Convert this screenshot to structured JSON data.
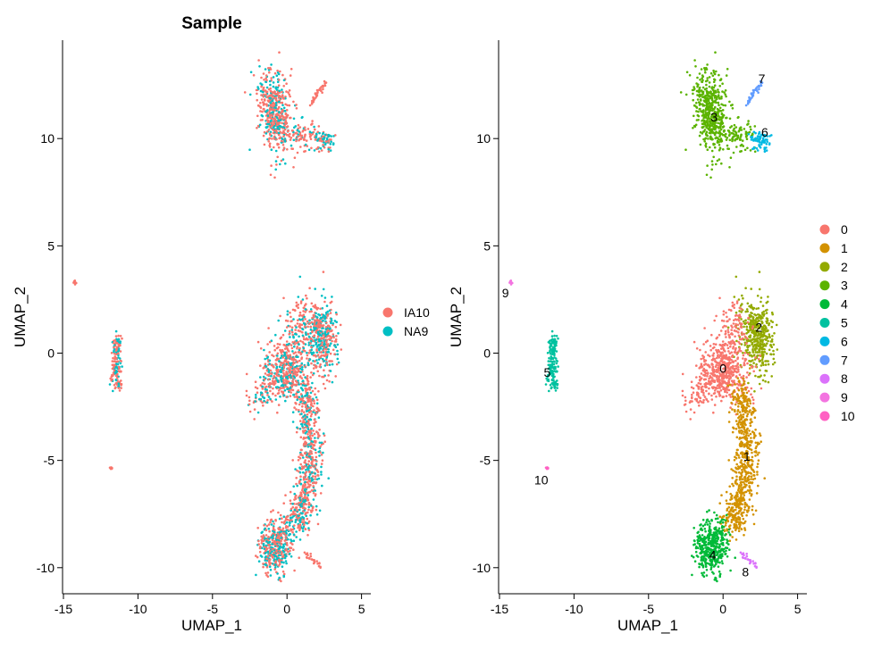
{
  "palette": {
    "IA10": "#F8766D",
    "NA9": "#00BFC4",
    "clusters": [
      "#F8766D",
      "#D39200",
      "#93AA00",
      "#5BB300",
      "#00BA38",
      "#00C19F",
      "#00B9E3",
      "#619CFF",
      "#DB72FB",
      "#F374E0",
      "#FF61C3"
    ]
  },
  "chart_data": [
    {
      "type": "scatter",
      "title": "Sample",
      "xlabel": "UMAP_1",
      "ylabel": "UMAP_2",
      "xlim": [
        -15.2,
        5.0
      ],
      "ylim": [
        -10.8,
        14.6
      ],
      "xticks": [
        -15,
        -10,
        -5,
        0,
        5
      ],
      "xtick_labels": [
        "-15",
        "-10",
        "-5",
        "0",
        "5"
      ],
      "yticks": [
        -10,
        -5,
        0,
        5,
        10
      ],
      "ytick_labels": [
        "-10",
        "-5",
        "0",
        "5",
        "10"
      ],
      "grid": false,
      "legend_position": "right",
      "legend": [
        {
          "label": "IA10",
          "color": "#F8766D"
        },
        {
          "label": "NA9",
          "color": "#00BFC4"
        }
      ],
      "series": [
        {
          "name": "IA10",
          "color": "#F8766D",
          "approx_points": [
            [
              -1.0,
              11.0
            ],
            [
              0.5,
              10.5
            ],
            [
              2.5,
              9.8
            ],
            [
              2.3,
              12.0
            ],
            [
              1.5,
              0.5
            ],
            [
              0.8,
              -2.0
            ],
            [
              1.2,
              -5.5
            ],
            [
              -0.5,
              -9.0
            ],
            [
              -11.5,
              -0.5
            ],
            [
              -14.2,
              3.3
            ],
            [
              -11.8,
              -5.4
            ]
          ]
        },
        {
          "name": "NA9",
          "color": "#00BFC4",
          "approx_points": [
            [
              -1.5,
              12.5
            ],
            [
              0.0,
              10.0
            ],
            [
              2.0,
              1.5
            ],
            [
              -0.5,
              -1.5
            ],
            [
              1.5,
              -6.5
            ],
            [
              -1.0,
              -9.5
            ],
            [
              -11.3,
              0.5
            ]
          ]
        }
      ]
    },
    {
      "type": "scatter",
      "title": "",
      "xlabel": "UMAP_1",
      "ylabel": "UMAP_2",
      "xlim": [
        -15.2,
        5.0
      ],
      "ylim": [
        -10.8,
        14.6
      ],
      "xticks": [
        -15,
        -10,
        -5,
        0,
        5
      ],
      "xtick_labels": [
        "-15",
        "-10",
        "-5",
        "0",
        "5"
      ],
      "yticks": [
        -10,
        -5,
        0,
        5,
        10
      ],
      "ytick_labels": [
        "-10",
        "-5",
        "0",
        "5",
        "10"
      ],
      "grid": false,
      "legend_position": "right",
      "legend": [
        {
          "label": "0",
          "color": "#F8766D"
        },
        {
          "label": "1",
          "color": "#D39200"
        },
        {
          "label": "2",
          "color": "#93AA00"
        },
        {
          "label": "3",
          "color": "#5BB300"
        },
        {
          "label": "4",
          "color": "#00BA38"
        },
        {
          "label": "5",
          "color": "#00C19F"
        },
        {
          "label": "6",
          "color": "#00B9E3"
        },
        {
          "label": "7",
          "color": "#619CFF"
        },
        {
          "label": "8",
          "color": "#DB72FB"
        },
        {
          "label": "9",
          "color": "#F374E0"
        },
        {
          "label": "10",
          "color": "#FF61C3"
        }
      ],
      "cluster_labels": [
        {
          "label": "0",
          "x": 0.0,
          "y": -0.7
        },
        {
          "label": "1",
          "x": 1.6,
          "y": -4.8
        },
        {
          "label": "2",
          "x": 2.4,
          "y": 1.2
        },
        {
          "label": "3",
          "x": -0.6,
          "y": 11.0
        },
        {
          "label": "4",
          "x": -0.7,
          "y": -9.4
        },
        {
          "label": "5",
          "x": -11.8,
          "y": -0.9
        },
        {
          "label": "6",
          "x": 2.8,
          "y": 10.3
        },
        {
          "label": "7",
          "x": 2.6,
          "y": 12.8
        },
        {
          "label": "8",
          "x": 1.5,
          "y": -10.2
        },
        {
          "label": "9",
          "x": -14.6,
          "y": 2.8
        },
        {
          "label": "10",
          "x": -12.2,
          "y": -5.9
        }
      ],
      "series": [
        {
          "name": "0",
          "color": "#F8766D",
          "approx_points": [
            [
              0.0,
              -0.8
            ],
            [
              -1.5,
              -1.5
            ],
            [
              0.8,
              -0.5
            ]
          ]
        },
        {
          "name": "1",
          "color": "#D39200",
          "approx_points": [
            [
              1.6,
              -4.8
            ],
            [
              1.2,
              -6.5
            ],
            [
              1.8,
              -3.0
            ]
          ]
        },
        {
          "name": "2",
          "color": "#93AA00",
          "approx_points": [
            [
              2.4,
              1.2
            ],
            [
              2.0,
              0.0
            ],
            [
              3.0,
              0.5
            ]
          ]
        },
        {
          "name": "3",
          "color": "#5BB300",
          "approx_points": [
            [
              -0.6,
              11.0
            ],
            [
              -1.3,
              12.2
            ],
            [
              0.2,
              10.2
            ]
          ]
        },
        {
          "name": "4",
          "color": "#00BA38",
          "approx_points": [
            [
              -0.7,
              -9.4
            ],
            [
              -0.5,
              -8.0
            ],
            [
              0.2,
              -9.5
            ]
          ]
        },
        {
          "name": "5",
          "color": "#00C19F",
          "approx_points": [
            [
              -11.5,
              -0.5
            ],
            [
              -11.4,
              0.4
            ],
            [
              -11.6,
              -1.3
            ]
          ]
        },
        {
          "name": "6",
          "color": "#00B9E3",
          "approx_points": [
            [
              2.8,
              10.0
            ],
            [
              2.4,
              9.8
            ]
          ]
        },
        {
          "name": "7",
          "color": "#619CFF",
          "approx_points": [
            [
              2.0,
              12.0
            ],
            [
              2.5,
              12.6
            ]
          ]
        },
        {
          "name": "8",
          "color": "#DB72FB",
          "approx_points": [
            [
              1.8,
              -9.7
            ],
            [
              2.2,
              -9.8
            ]
          ]
        },
        {
          "name": "9",
          "color": "#F374E0",
          "approx_points": [
            [
              -14.2,
              3.3
            ]
          ]
        },
        {
          "name": "10",
          "color": "#FF61C3",
          "approx_points": [
            [
              -11.8,
              -5.4
            ]
          ]
        }
      ]
    }
  ]
}
